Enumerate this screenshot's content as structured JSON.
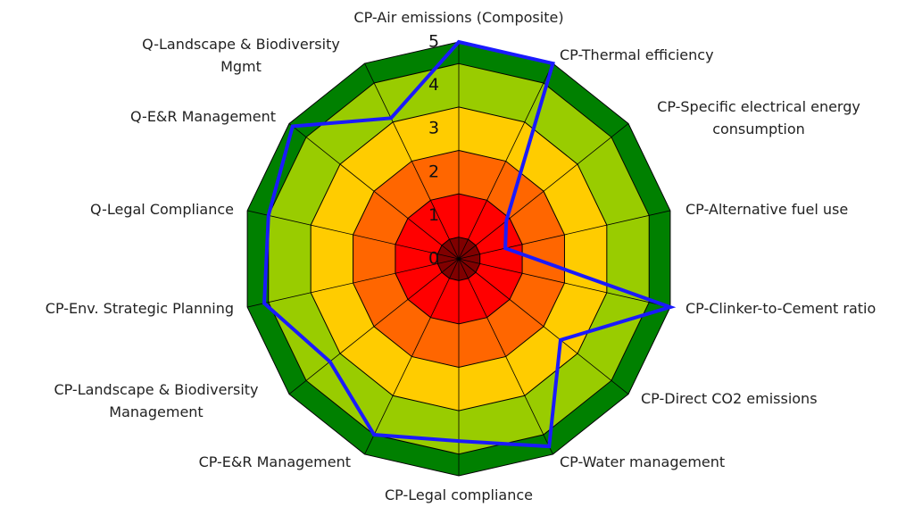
{
  "chart_data": {
    "type": "radar",
    "categories": [
      "CP-Air emissions (Composite)",
      "CP-Thermal efficiency",
      "CP-Specific electrical energy\nconsumption",
      "CP-Alternative fuel use",
      "CP-Clinker-to-Cement ratio",
      "CP-Direct CO2 emissions",
      "CP-Water management",
      "CP-Legal compliance",
      "CP-E&R Management",
      "CP-Landscape & Biodiversity\nManagement",
      "CP-Env. Strategic Planning",
      "Q-Legal Compliance",
      "Q-E&R Management",
      "Q-Landscape & Biodiversity\nMgmt"
    ],
    "series": [
      {
        "color": "#1a1aff",
        "values": [
          5,
          5,
          1.4,
          1.1,
          5,
          3,
          4.8,
          4.2,
          4.5,
          3.8,
          4.6,
          4.5,
          4.9,
          3.6
        ]
      }
    ],
    "rlim": [
      0,
      5
    ],
    "rticks": [
      0,
      1,
      2,
      3,
      4,
      5
    ],
    "bands": [
      {
        "from": 4.5,
        "to": 5,
        "color": "#008000"
      },
      {
        "from": 3.5,
        "to": 4.5,
        "color": "#99cc00"
      },
      {
        "from": 2.5,
        "to": 3.5,
        "color": "#ffcc00"
      },
      {
        "from": 1.5,
        "to": 2.5,
        "color": "#ff6600"
      },
      {
        "from": 0.5,
        "to": 1.5,
        "color": "#ff0000"
      },
      {
        "from": 0,
        "to": 0.5,
        "color": "#800000"
      }
    ]
  }
}
